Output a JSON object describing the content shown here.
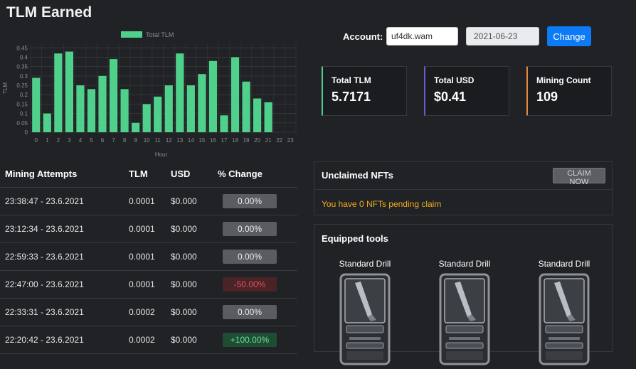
{
  "header": {
    "title": "TLM Earned"
  },
  "account": {
    "label": "Account:",
    "value": "uf4dk.wam",
    "date": "2021-06-23",
    "change_label": "Change"
  },
  "stats": [
    {
      "label": "Total TLM",
      "value": "5.7171",
      "accent": "#4fd18b"
    },
    {
      "label": "Total USD",
      "value": "$0.41",
      "accent": "#6a5acd"
    },
    {
      "label": "Mining Count",
      "value": "109",
      "accent": "#e08a3c"
    }
  ],
  "chart_data": {
    "type": "bar",
    "title": "",
    "legend": [
      "Total TLM"
    ],
    "xlabel": "Hour",
    "ylabel": "TLM",
    "categories": [
      "0",
      "1",
      "2",
      "3",
      "4",
      "5",
      "6",
      "7",
      "8",
      "9",
      "10",
      "11",
      "12",
      "13",
      "14",
      "15",
      "16",
      "17",
      "18",
      "19",
      "20",
      "21",
      "22",
      "23"
    ],
    "values": [
      0.29,
      0.1,
      0.42,
      0.43,
      0.25,
      0.23,
      0.3,
      0.39,
      0.23,
      0.05,
      0.15,
      0.19,
      0.25,
      0.42,
      0.25,
      0.31,
      0.38,
      0.09,
      0.4,
      0.27,
      0.18,
      0.16,
      0,
      0
    ],
    "yticks": [
      "0",
      "0.05",
      "0.1",
      "0.15",
      "0.2",
      "0.25",
      "0.3",
      "0.35",
      "0.4",
      "0.45"
    ],
    "ylim": [
      0,
      0.47
    ],
    "color": "#4fd18b"
  },
  "mining": {
    "headers": [
      "Mining Attempts",
      "TLM",
      "USD",
      "% Change"
    ],
    "rows": [
      {
        "time": "23:38:47 - 23.6.2021",
        "tlm": "0.0001",
        "usd": "$0.000",
        "change": "0.00%",
        "kind": "neutral"
      },
      {
        "time": "23:12:34 - 23.6.2021",
        "tlm": "0.0001",
        "usd": "$0.000",
        "change": "0.00%",
        "kind": "neutral"
      },
      {
        "time": "22:59:33 - 23.6.2021",
        "tlm": "0.0001",
        "usd": "$0.000",
        "change": "0.00%",
        "kind": "neutral"
      },
      {
        "time": "22:47:00 - 23.6.2021",
        "tlm": "0.0001",
        "usd": "$0.000",
        "change": "-50.00%",
        "kind": "neg"
      },
      {
        "time": "22:33:31 - 23.6.2021",
        "tlm": "0.0002",
        "usd": "$0.000",
        "change": "0.00%",
        "kind": "neutral"
      },
      {
        "time": "22:20:42 - 23.6.2021",
        "tlm": "0.0002",
        "usd": "$0.000",
        "change": "+100.00%",
        "kind": "pos"
      }
    ]
  },
  "nfts": {
    "title": "Unclaimed NFTs",
    "claim_label": "CLAIM NOW",
    "message": "You have 0 NFTs pending claim"
  },
  "tools": {
    "title": "Equipped tools",
    "items": [
      {
        "name": "Standard Drill"
      },
      {
        "name": "Standard Drill"
      },
      {
        "name": "Standard Drill"
      }
    ]
  }
}
